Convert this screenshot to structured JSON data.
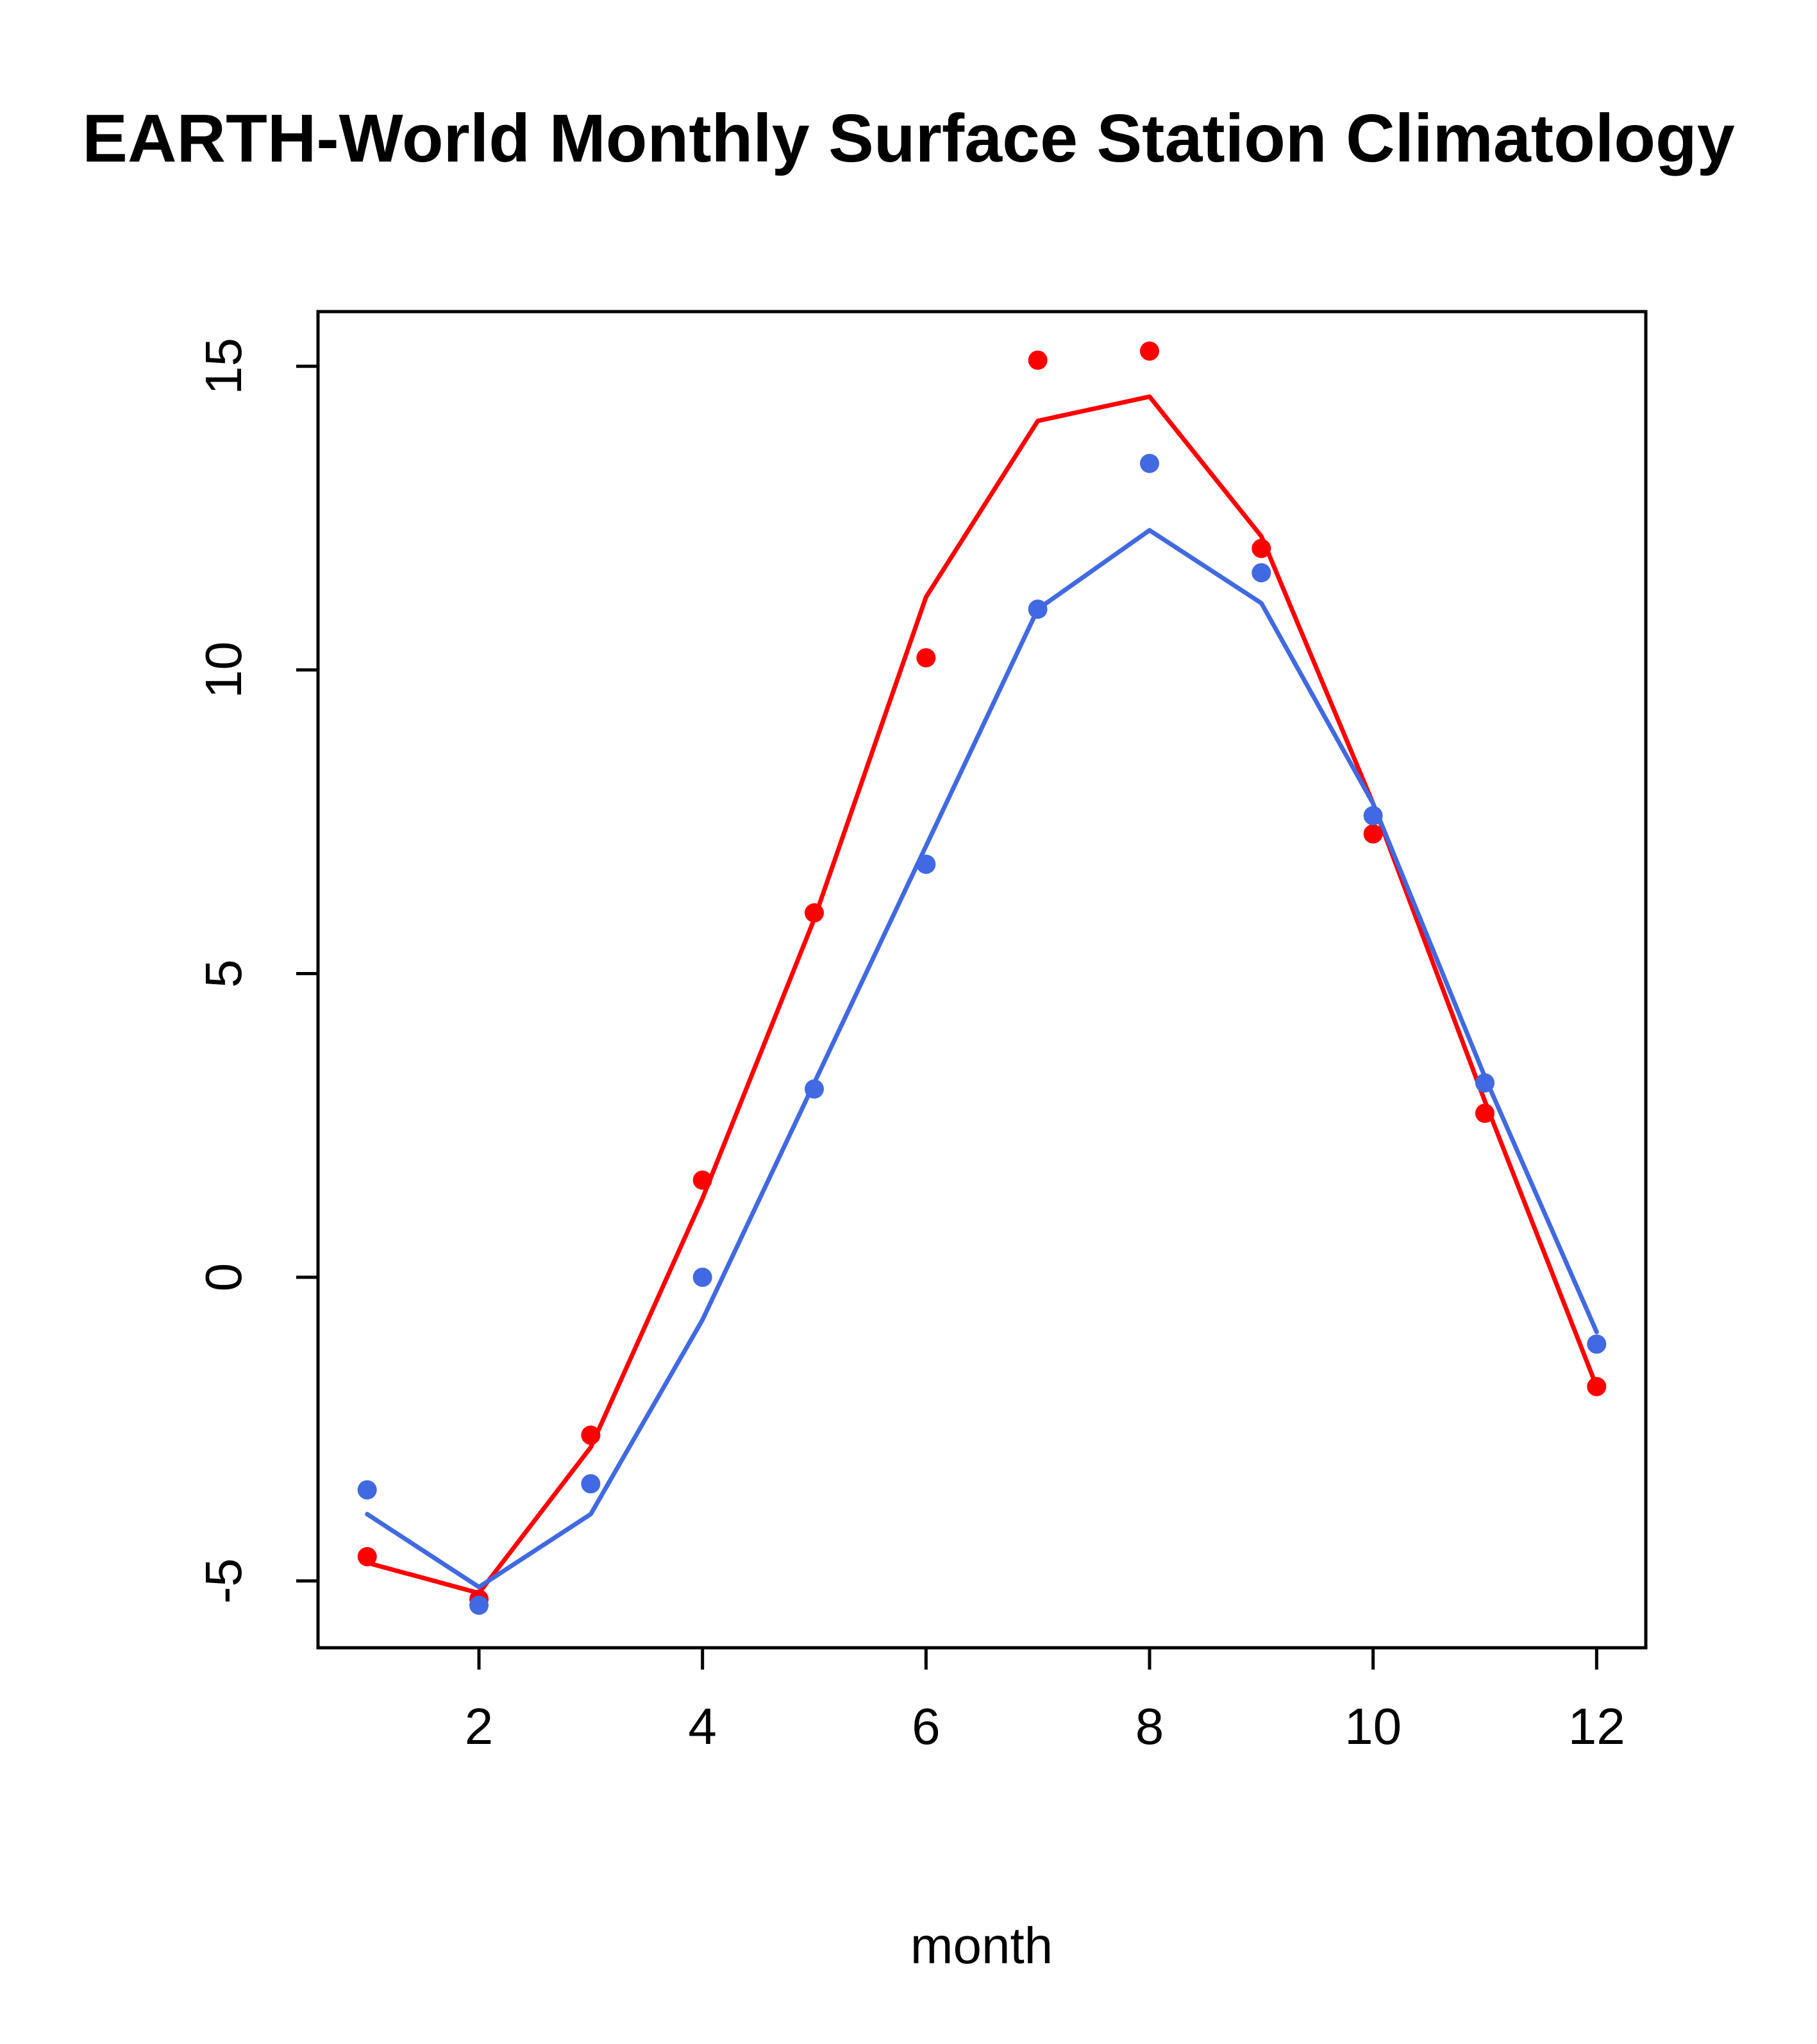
{
  "page": {
    "background": "#ffffff"
  },
  "chart_data": {
    "type": "line",
    "title": "EARTH-World Monthly Surface Station Climatology",
    "xlabel": "month",
    "ylabel": "",
    "x": [
      1,
      2,
      3,
      4,
      5,
      6,
      7,
      8,
      9,
      10,
      11,
      12
    ],
    "xticks": [
      2,
      4,
      6,
      8,
      10,
      12
    ],
    "yticks": [
      -5,
      0,
      5,
      10,
      15
    ],
    "xlim": [
      0.56,
      12.44
    ],
    "ylim": [
      -6.1,
      15.9
    ],
    "grid": false,
    "legend": "none",
    "colors": {
      "red": "#ff0000",
      "blue": "#4169e1",
      "axis": "#000000"
    },
    "series": [
      {
        "name": "red-line",
        "style": "line",
        "color": "#ff0000",
        "values": [
          -4.7,
          -5.2,
          -2.8,
          1.3,
          5.9,
          11.2,
          14.1,
          14.5,
          12.2,
          7.8,
          2.9,
          -1.8
        ]
      },
      {
        "name": "blue-line",
        "style": "line",
        "color": "#4169e1",
        "values": [
          -3.9,
          -5.1,
          -3.9,
          -0.7,
          3.2,
          7.1,
          11.0,
          12.3,
          11.1,
          7.8,
          3.3,
          -0.9
        ]
      },
      {
        "name": "red-points",
        "style": "points",
        "color": "#ff0000",
        "values": [
          -4.6,
          -5.3,
          -2.6,
          1.6,
          6.0,
          10.2,
          15.1,
          15.25,
          12.0,
          7.3,
          2.7,
          -1.8
        ]
      },
      {
        "name": "blue-points",
        "style": "points",
        "color": "#4169e1",
        "values": [
          -3.5,
          -5.4,
          -3.4,
          0.0,
          3.1,
          6.8,
          11.0,
          13.4,
          11.6,
          7.6,
          3.2,
          -1.1
        ]
      }
    ]
  }
}
